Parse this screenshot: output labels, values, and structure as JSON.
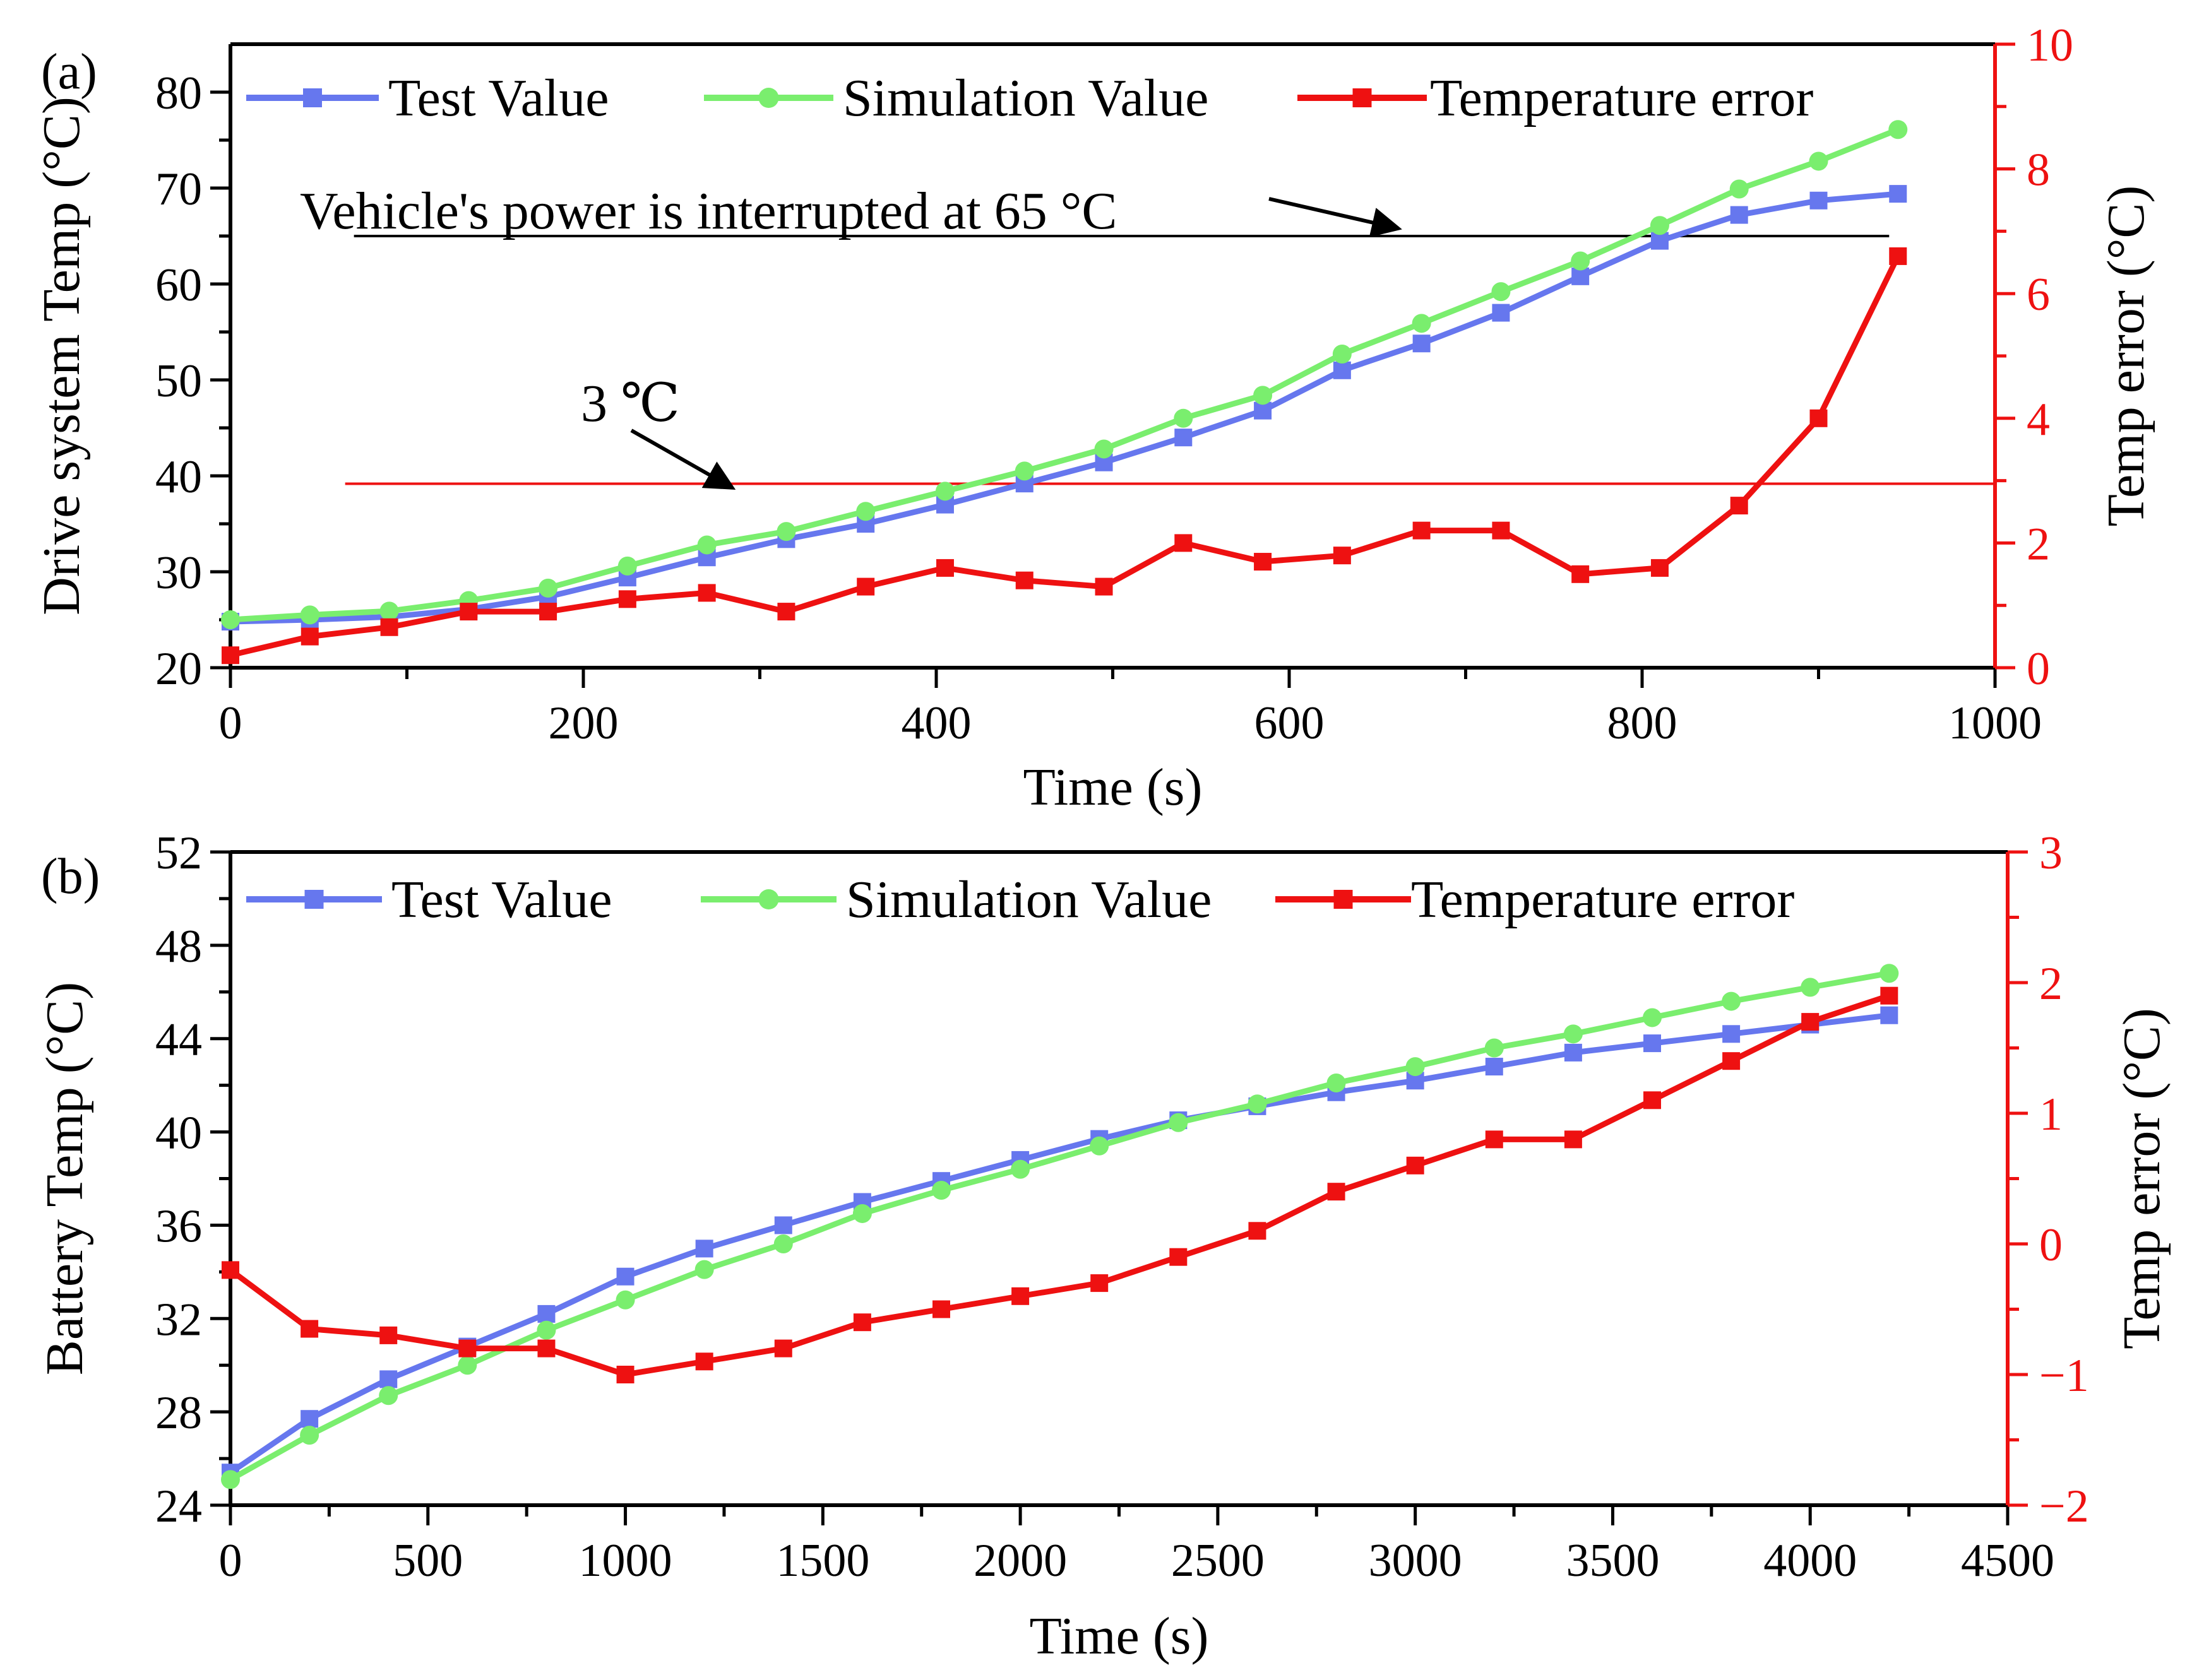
{
  "chart_data": [
    {
      "type": "line",
      "panel_label": "(a)",
      "xlabel": "Time (s)",
      "ylabel": "Drive system Temp (°C)",
      "y2label": "Temp error  (°C)",
      "xlim": [
        0,
        1000
      ],
      "ylim": [
        20,
        85
      ],
      "y2lim": [
        0,
        10
      ],
      "xticks": [
        0,
        200,
        400,
        600,
        800,
        1000
      ],
      "yticks": [
        20,
        30,
        40,
        50,
        60,
        70,
        80
      ],
      "y2ticks": [
        0,
        2,
        4,
        6,
        8,
        10
      ],
      "grid": false,
      "legend_position": "top",
      "x": [
        0,
        45,
        90,
        135,
        180,
        225,
        270,
        315,
        360,
        405,
        450,
        495,
        540,
        585,
        630,
        675,
        720,
        765,
        810,
        855,
        900,
        945
      ],
      "series": [
        {
          "name": "Test Value",
          "axis": "left",
          "color": "#6677ee",
          "marker": "square",
          "values": [
            24.8,
            25.0,
            25.3,
            26.1,
            27.4,
            29.4,
            31.5,
            33.4,
            35.0,
            37.0,
            39.2,
            41.4,
            44.0,
            46.8,
            51.0,
            53.8,
            57.0,
            60.8,
            64.5,
            67.2,
            68.7,
            69.4
          ]
        },
        {
          "name": "Simulation Value",
          "axis": "left",
          "color": "#7aee6e",
          "marker": "circle",
          "values": [
            25.0,
            25.5,
            25.9,
            27.0,
            28.3,
            30.6,
            32.8,
            34.2,
            36.3,
            38.4,
            40.5,
            42.8,
            46.0,
            48.4,
            52.7,
            55.9,
            59.2,
            62.4,
            66.1,
            69.9,
            72.8,
            76.1
          ]
        },
        {
          "name": "Temperature error",
          "axis": "right",
          "color": "#ee1111",
          "marker": "square",
          "values": [
            0.2,
            0.5,
            0.65,
            0.9,
            0.9,
            1.1,
            1.2,
            0.9,
            1.3,
            1.6,
            1.4,
            1.3,
            2.0,
            1.7,
            1.8,
            2.2,
            2.2,
            1.5,
            1.6,
            2.6,
            4.0,
            6.6
          ]
        }
      ],
      "reference_lines": [
        {
          "axis": "left",
          "value": 65,
          "color": "#000000",
          "x_range": [
            70,
            940
          ],
          "label": "Vehicle's power is interrupted at 65 °C"
        },
        {
          "axis": "right",
          "value": 2.95,
          "color": "#ee1111",
          "x_range": [
            65,
            1000
          ],
          "label": "3 ℃"
        }
      ]
    },
    {
      "type": "line",
      "panel_label": "(b)",
      "xlabel": "Time (s)",
      "ylabel": "Battery Temp (°C)",
      "y2label": "Temp error  (°C)",
      "xlim": [
        0,
        4500
      ],
      "ylim": [
        24,
        52
      ],
      "y2lim": [
        -2,
        3
      ],
      "xticks": [
        0,
        500,
        1000,
        1500,
        2000,
        2500,
        3000,
        3500,
        4000,
        4500
      ],
      "yticks": [
        24,
        28,
        32,
        36,
        40,
        44,
        48,
        52
      ],
      "y2ticks": [
        -2,
        -1,
        0,
        1,
        2,
        3
      ],
      "y2ticklabels": [
        "−2",
        "−1",
        "0",
        "1",
        "2",
        "3"
      ],
      "grid": false,
      "legend_position": "top",
      "x": [
        0,
        200,
        400,
        600,
        800,
        1000,
        1200,
        1400,
        1600,
        1800,
        2000,
        2200,
        2400,
        2600,
        2800,
        3000,
        3200,
        3400,
        3600,
        3800,
        4000,
        4200
      ],
      "series": [
        {
          "name": "Test Value",
          "axis": "left",
          "color": "#6677ee",
          "marker": "square",
          "values": [
            25.4,
            27.7,
            29.4,
            30.8,
            32.2,
            33.8,
            35.0,
            36.0,
            37.0,
            37.9,
            38.8,
            39.7,
            40.5,
            41.1,
            41.7,
            42.2,
            42.8,
            43.4,
            43.8,
            44.2,
            44.6,
            45.0
          ]
        },
        {
          "name": "Simulation Value",
          "axis": "left",
          "color": "#7aee6e",
          "marker": "circle",
          "values": [
            25.1,
            27.0,
            28.7,
            30.0,
            31.5,
            32.8,
            34.1,
            35.2,
            36.5,
            37.5,
            38.4,
            39.4,
            40.4,
            41.2,
            42.1,
            42.8,
            43.6,
            44.2,
            44.9,
            45.6,
            46.2,
            46.8
          ]
        },
        {
          "name": "Temperature error",
          "axis": "right",
          "color": "#ee1111",
          "marker": "square",
          "values": [
            -0.2,
            -0.65,
            -0.7,
            -0.8,
            -0.8,
            -1.0,
            -0.9,
            -0.8,
            -0.6,
            -0.5,
            -0.4,
            -0.3,
            -0.1,
            0.1,
            0.4,
            0.6,
            0.8,
            0.8,
            1.1,
            1.4,
            1.7,
            1.9
          ]
        }
      ]
    }
  ]
}
